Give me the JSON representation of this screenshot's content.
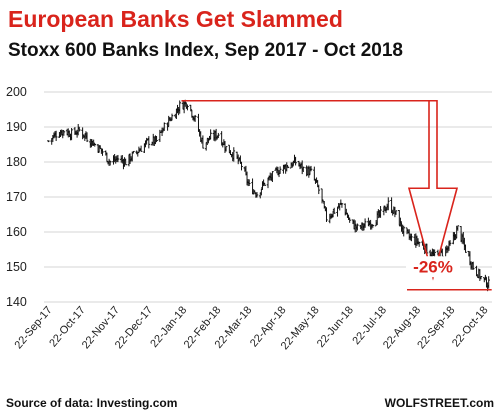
{
  "chart_data": {
    "type": "candlestick",
    "title": "European Banks Get Slammed",
    "subtitle": "Stoxx 600 Banks Index, Sep 2017 - Oct 2018",
    "ylim": [
      140,
      200
    ],
    "yticks": [
      140,
      150,
      160,
      170,
      180,
      190,
      200
    ],
    "xlabels": [
      "22-Sep-17",
      "22-Oct-17",
      "22-Nov-17",
      "22-Dec-17",
      "22-Jan-18",
      "22-Feb-18",
      "22-Mar-18",
      "22-Apr-18",
      "22-May-18",
      "22-Jun-18",
      "22-Jul-18",
      "22-Aug-18",
      "22-Sep-18",
      "22-Oct-18"
    ],
    "grid": "horizontal",
    "series": [
      {
        "values": [
          [
            "2017-09-22",
            186
          ],
          [
            "2017-09-29",
            188
          ],
          [
            "2017-10-06",
            189
          ],
          [
            "2017-10-13",
            188
          ],
          [
            "2017-10-20",
            189
          ],
          [
            "2017-10-27",
            187
          ],
          [
            "2017-11-03",
            185
          ],
          [
            "2017-11-10",
            183
          ],
          [
            "2017-11-17",
            180
          ],
          [
            "2017-11-24",
            181
          ],
          [
            "2017-12-01",
            180
          ],
          [
            "2017-12-08",
            182
          ],
          [
            "2017-12-15",
            184
          ],
          [
            "2017-12-22",
            186
          ],
          [
            "2017-12-29",
            186
          ],
          [
            "2018-01-05",
            190
          ],
          [
            "2018-01-12",
            193
          ],
          [
            "2018-01-19",
            196
          ],
          [
            "2018-01-26",
            197
          ],
          [
            "2018-02-02",
            192
          ],
          [
            "2018-02-09",
            185
          ],
          [
            "2018-02-16",
            187
          ],
          [
            "2018-02-23",
            188
          ],
          [
            "2018-03-02",
            184
          ],
          [
            "2018-03-09",
            182
          ],
          [
            "2018-03-16",
            179
          ],
          [
            "2018-03-23",
            173
          ],
          [
            "2018-03-30",
            171
          ],
          [
            "2018-04-06",
            174
          ],
          [
            "2018-04-13",
            176
          ],
          [
            "2018-04-20",
            178
          ],
          [
            "2018-04-27",
            179
          ],
          [
            "2018-05-04",
            180
          ],
          [
            "2018-05-11",
            178
          ],
          [
            "2018-05-18",
            177
          ],
          [
            "2018-05-25",
            172
          ],
          [
            "2018-06-01",
            164
          ],
          [
            "2018-06-08",
            166
          ],
          [
            "2018-06-15",
            168
          ],
          [
            "2018-06-22",
            163
          ],
          [
            "2018-06-29",
            161
          ],
          [
            "2018-07-06",
            162
          ],
          [
            "2018-07-13",
            163
          ],
          [
            "2018-07-20",
            165
          ],
          [
            "2018-07-27",
            168
          ],
          [
            "2018-08-03",
            165
          ],
          [
            "2018-08-10",
            160
          ],
          [
            "2018-08-17",
            158
          ],
          [
            "2018-08-24",
            157
          ],
          [
            "2018-08-31",
            155
          ],
          [
            "2018-09-07",
            153
          ],
          [
            "2018-09-14",
            154
          ],
          [
            "2018-09-21",
            156
          ],
          [
            "2018-09-28",
            161
          ],
          [
            "2018-10-05",
            155
          ],
          [
            "2018-10-12",
            150
          ],
          [
            "2018-10-19",
            147
          ],
          [
            "2018-10-26",
            145
          ]
        ]
      }
    ],
    "annotations": [
      {
        "label": "-26%",
        "from": [
          "2018-01-26",
          197.5
        ],
        "to": [
          "2018-10-26",
          143.5
        ],
        "color": "#d9241c"
      }
    ]
  },
  "footer": {
    "source": "Source of data: Investing.com",
    "brand": "WOLFSTREET.com"
  },
  "colors": {
    "title": "#d9241c",
    "annotation": "#d9241c",
    "series": "#111111",
    "grid": "#d4d4d4"
  }
}
